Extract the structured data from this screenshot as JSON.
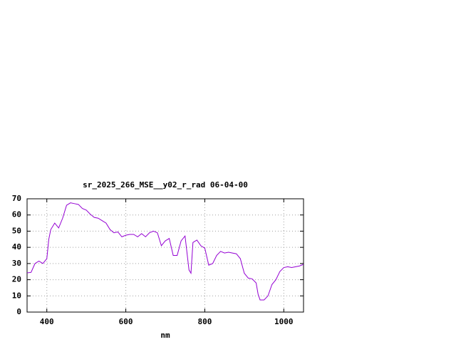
{
  "chart_data": {
    "type": "line",
    "title": "sr_2025_266_MSE__y02_r_rad 06-04-00",
    "x_label": "nm",
    "x": [
      350,
      360,
      370,
      380,
      390,
      400,
      405,
      410,
      420,
      430,
      440,
      450,
      460,
      470,
      480,
      490,
      500,
      510,
      520,
      530,
      540,
      550,
      560,
      570,
      580,
      590,
      600,
      610,
      620,
      630,
      640,
      650,
      660,
      670,
      680,
      690,
      700,
      710,
      720,
      730,
      740,
      750,
      760,
      765,
      770,
      780,
      790,
      800,
      810,
      820,
      830,
      840,
      850,
      860,
      870,
      880,
      890,
      900,
      910,
      920,
      930,
      935,
      940,
      950,
      960,
      970,
      980,
      990,
      1000,
      1010,
      1020,
      1030,
      1040,
      1050
    ],
    "values": [
      24.2,
      24.5,
      30,
      31.5,
      30,
      33,
      45,
      51,
      55,
      52,
      58,
      66,
      67.5,
      67,
      66.5,
      64,
      63,
      60.5,
      58.5,
      58,
      56.5,
      55,
      51,
      49,
      49.5,
      46.5,
      47.5,
      48,
      48,
      46.5,
      48.5,
      46.5,
      49,
      50,
      49,
      41,
      44,
      45.5,
      35,
      35,
      44,
      47,
      26,
      24,
      43,
      44.5,
      41,
      39.5,
      29,
      30,
      35,
      37.5,
      36.5,
      37,
      36.5,
      36,
      33,
      24,
      21,
      20.5,
      18,
      11,
      7.5,
      7.5,
      10,
      17,
      20,
      25,
      27.5,
      28,
      27.5,
      28,
      28.5,
      29.5
    ],
    "color": "#9400d3",
    "xlim": [
      350,
      1050
    ],
    "xticks": [
      400,
      600,
      800,
      1000
    ],
    "ylim": [
      0,
      70
    ],
    "yticks": [
      0,
      10,
      20,
      30,
      40,
      50,
      60,
      70
    ],
    "grid": true
  }
}
